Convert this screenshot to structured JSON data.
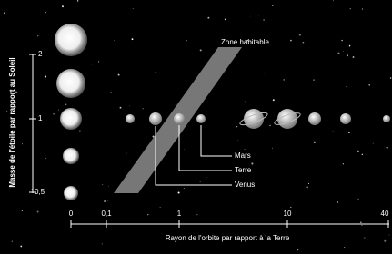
{
  "y_axis": {
    "label": "Masse de l'étoile par rapport au Soleil",
    "ticks": [
      "2",
      "1",
      "0,5"
    ]
  },
  "x_axis": {
    "label": "Rayon de l'orbite par rapport à la Terre",
    "ticks": [
      "0",
      "0,1",
      "1",
      "10",
      "40"
    ]
  },
  "zone": {
    "label": "Zone habitable"
  },
  "planets": [
    {
      "label": "Mars"
    },
    {
      "label": "Terre"
    },
    {
      "label": "Venus"
    }
  ]
}
